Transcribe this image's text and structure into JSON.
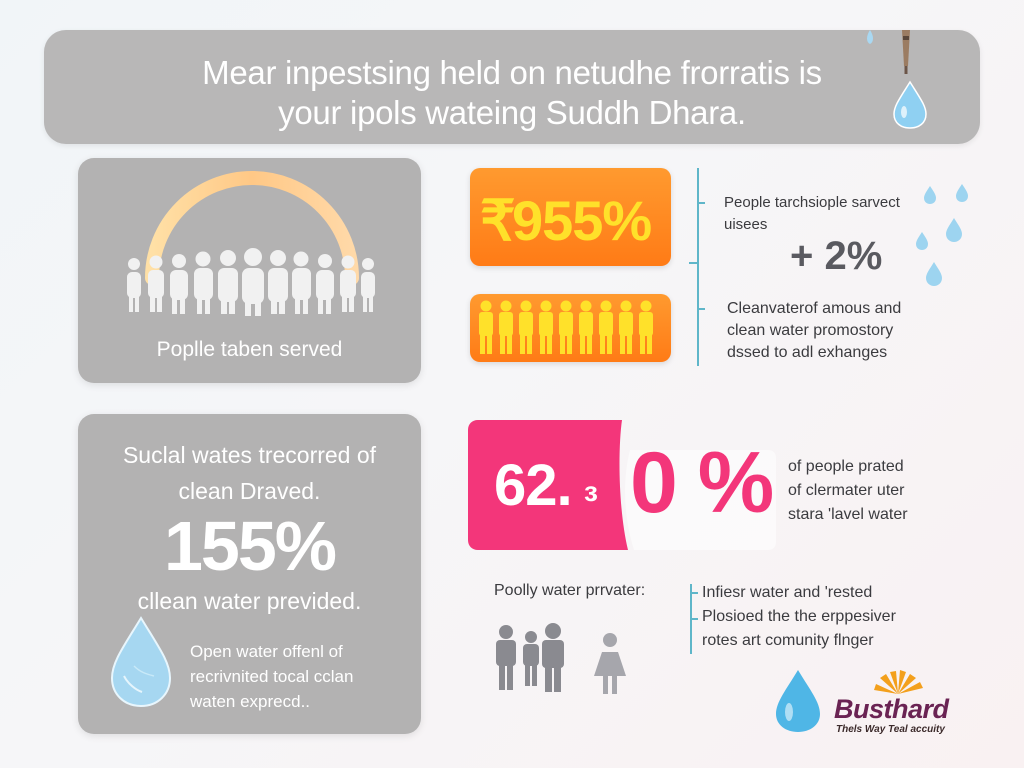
{
  "banner": {
    "line1": "Mear inpestsing held on netudhe frorratis is",
    "line2": "your ipols wateing Suddh Dhara."
  },
  "people_card": {
    "label": "Poplle taben served"
  },
  "stat_95": {
    "value": "955%",
    "glyph": "₹"
  },
  "stat_95_note": {
    "line1": "People tarchsiople sarvect",
    "line2": "uisees",
    "delta": "+ 2%"
  },
  "clean_note": {
    "line1": "Cleanvaterof amous and",
    "line2": "clean water promostory",
    "line3": "dssed to adl exhanges"
  },
  "left_card": {
    "line1": "Suclal wates trecorred of",
    "line2": "clean Draved.",
    "value": "155%",
    "caption": "cllean water previded.",
    "note1": "Open water offenl of",
    "note2": "recrivnited tocal cclan",
    "note3": "waten exprecd.."
  },
  "stat_62": {
    "value_left": "62.",
    "value_mid": "ɜ",
    "value_right": "0 %"
  },
  "stat_62_note": {
    "line1": "of people prated",
    "line2": "of clermater uter",
    "line3": "stara 'lavel water"
  },
  "poorly": {
    "label": "Poolly water prrvater:"
  },
  "bottom_note": {
    "line1": "Infiesr water and 'rested",
    "line2": "Plosioed the the erppesiver",
    "line3": "rotes art comunity flnger"
  },
  "brand": {
    "name": "Busthard",
    "tagline": "Thels Way Teal accuity"
  },
  "colors": {
    "orange": "#ff8a1f",
    "yellow": "#ffe12a",
    "pink": "#f3367a",
    "gray_card": "#b3b2b2",
    "teal_line": "#5fb6c9",
    "brand_purple": "#6a2353"
  },
  "icons": [
    "water-drop-icon",
    "faucet-icon",
    "people-group-icon",
    "person-icon",
    "sun-logo-icon"
  ]
}
